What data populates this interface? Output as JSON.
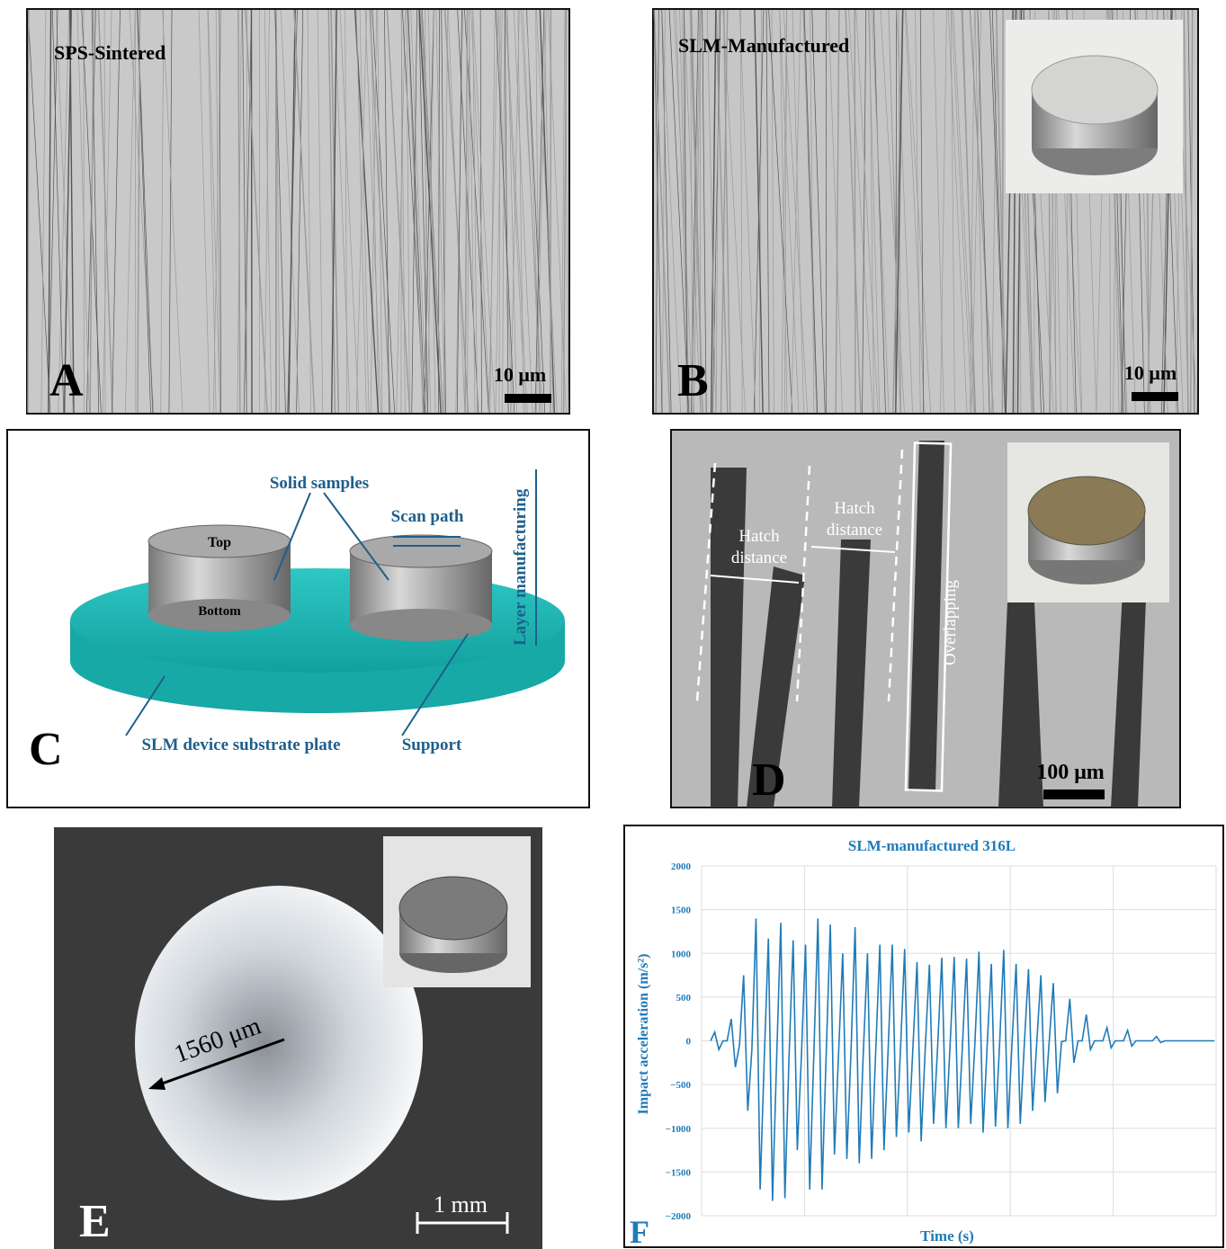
{
  "panels": {
    "A": {
      "label": "A",
      "title": "SPS-Sintered",
      "scale": "10 μm"
    },
    "B": {
      "label": "B",
      "title": "SLM-Manufactured",
      "scale": "10 μm"
    },
    "C": {
      "label": "C",
      "solid_samples": "Solid samples",
      "scan_path": "Scan path",
      "layer": "Layer manufacturing",
      "top": "Top",
      "bottom": "Bottom",
      "substrate": "SLM device substrate plate",
      "support": "Support"
    },
    "D": {
      "label": "D",
      "hatch_1": [
        "Hatch",
        "distance"
      ],
      "hatch_2": [
        "Hatch",
        "distance"
      ],
      "overlapping": "Overlapping",
      "scale": "100 μm"
    },
    "E": {
      "label": "E",
      "diameter": "1560 μm",
      "scale": "1 mm"
    },
    "F": {
      "label": "F"
    }
  },
  "chart_data": {
    "type": "line",
    "title": "SLM-manufactured 316L",
    "y_label": "Impact acceleration (m/s²)",
    "x_label": "Time (s)",
    "color": "#1f7bb8",
    "values": [
      0,
      100,
      -100,
      0,
      0,
      250,
      -300,
      -50,
      750,
      -800,
      -100,
      1400,
      -1700,
      -200,
      1170,
      -1830,
      -200,
      1350,
      -1800,
      -180,
      1150,
      -1250,
      -170,
      1100,
      -1700,
      -160,
      1400,
      -1700,
      -150,
      1330,
      -1300,
      -140,
      1000,
      -1350,
      -130,
      1300,
      -1400,
      -120,
      1000,
      -1350,
      -110,
      1100,
      -1250,
      -100,
      1100,
      -1100,
      -90,
      1050,
      -1050,
      -80,
      900,
      -1150,
      -70,
      870,
      -950,
      -60,
      950,
      -1000,
      -55,
      960,
      -1000,
      -50,
      940,
      -950,
      -45,
      1020,
      -1050,
      -40,
      880,
      -980,
      -35,
      1040,
      -1000,
      -30,
      880,
      -950,
      -25,
      820,
      -800,
      -20,
      750,
      -700,
      -15,
      660,
      -600,
      -10,
      0,
      480,
      -250,
      0,
      0,
      300,
      -100,
      0,
      0,
      0,
      150,
      -80,
      0,
      0,
      0,
      120,
      -60,
      0,
      0,
      0,
      0,
      0,
      50,
      -20,
      0,
      0,
      0,
      0,
      0,
      0,
      0,
      0,
      0,
      0,
      0,
      0,
      0
    ],
    "ylim": [
      -2000,
      2000
    ],
    "yticks": [
      {
        "value": -2000,
        "label": "−2000"
      },
      {
        "value": -1500,
        "label": "−1500"
      },
      {
        "value": -1000,
        "label": "−1000"
      },
      {
        "value": -500,
        "label": "−500"
      },
      0,
      500,
      1000,
      1500,
      2000
    ],
    "grid": true
  }
}
